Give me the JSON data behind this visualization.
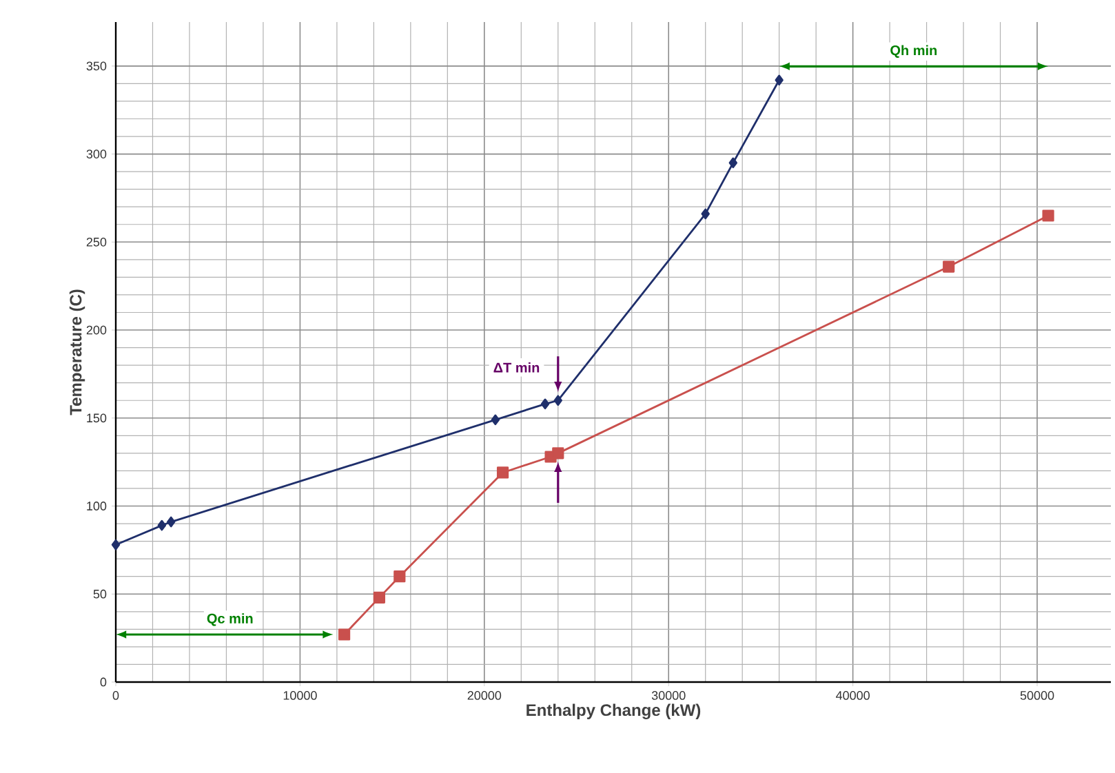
{
  "chart_data": {
    "type": "line",
    "xlabel": "Enthalpy Change (kW)",
    "ylabel": "Temperature (C)",
    "xlim": [
      0,
      54000
    ],
    "ylim": [
      0,
      375
    ],
    "xticks": [
      0,
      10000,
      20000,
      30000,
      40000,
      50000
    ],
    "yticks": [
      0,
      50,
      100,
      150,
      200,
      250,
      300,
      350
    ],
    "grid": true,
    "series": [
      {
        "color": "#1f2f6b",
        "marker": "diamond",
        "x": [
          0,
          2500,
          3000,
          20600,
          23300,
          24000,
          32000,
          33500,
          36000
        ],
        "values": [
          78,
          89,
          91,
          149,
          158,
          160,
          266,
          295,
          342
        ]
      },
      {
        "color": "#c9504d",
        "marker": "square",
        "x": [
          12400,
          14300,
          15400,
          21000,
          23600,
          24000,
          45200,
          50600
        ],
        "values": [
          27,
          48,
          60,
          119,
          128,
          130,
          236,
          265
        ]
      }
    ],
    "annotations": [
      "Qh min",
      "Qc min",
      {
        "text": "ΔT min",
        "x": 24000,
        "y": 160
      }
    ]
  }
}
